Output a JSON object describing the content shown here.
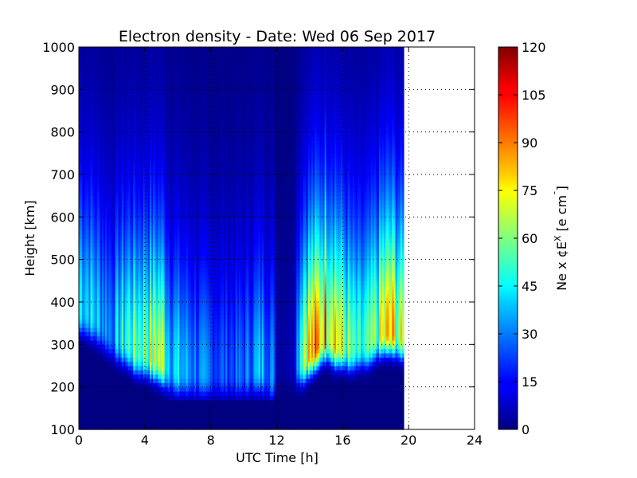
{
  "chart_data": {
    "type": "heatmap",
    "title": "Electron density - Date: Wed 06 Sep 2017",
    "xlabel": "UTC Time [h]",
    "ylabel": "Height [km]",
    "colorbar_label": "Ne x ¢E",
    "colorbar_label_sup": "X",
    "colorbar_label_unit": "  [e cm",
    "colorbar_label_unit_sup": "¯",
    "colorbar_label_close": "]",
    "xlim": [
      0,
      24
    ],
    "ylim": [
      100,
      1000
    ],
    "xticks": [
      0,
      4,
      8,
      12,
      16,
      20,
      24
    ],
    "yticks": [
      100,
      200,
      300,
      400,
      500,
      600,
      700,
      800,
      900,
      1000
    ],
    "colorbar_range": [
      0,
      120
    ],
    "colorbar_ticks": [
      0,
      15,
      30,
      45,
      60,
      75,
      90,
      105,
      120
    ],
    "colormap": "jet",
    "grid": "dotted",
    "data_end_hour": 19.7,
    "profiles": [
      {
        "t": 0.0,
        "hmax": 380,
        "peak": 55
      },
      {
        "t": 1.0,
        "hmax": 360,
        "peak": 45
      },
      {
        "t": 2.0,
        "hmax": 320,
        "peak": 35
      },
      {
        "t": 3.0,
        "hmax": 300,
        "peak": 60
      },
      {
        "t": 3.5,
        "hmax": 280,
        "peak": 65
      },
      {
        "t": 4.0,
        "hmax": 280,
        "peak": 70
      },
      {
        "t": 4.5,
        "hmax": 270,
        "peak": 75
      },
      {
        "t": 5.0,
        "hmax": 260,
        "peak": 80
      },
      {
        "t": 5.5,
        "hmax": 240,
        "peak": 50
      },
      {
        "t": 6.0,
        "hmax": 235,
        "peak": 45
      },
      {
        "t": 7.0,
        "hmax": 230,
        "peak": 35
      },
      {
        "t": 8.0,
        "hmax": 230,
        "peak": 30
      },
      {
        "t": 9.0,
        "hmax": 230,
        "peak": 28
      },
      {
        "t": 10.0,
        "hmax": 230,
        "peak": 30
      },
      {
        "t": 11.0,
        "hmax": 240,
        "peak": 42
      },
      {
        "t": 11.7,
        "hmax": 220,
        "peak": 38
      },
      {
        "t": 12.1,
        "hmax": 250,
        "peak": 5
      },
      {
        "t": 13.0,
        "hmax": 250,
        "peak": 8
      },
      {
        "t": 13.6,
        "hmax": 260,
        "peak": 85
      },
      {
        "t": 14.0,
        "hmax": 280,
        "peak": 90
      },
      {
        "t": 14.5,
        "hmax": 300,
        "peak": 95
      },
      {
        "t": 15.0,
        "hmax": 320,
        "peak": 105
      },
      {
        "t": 15.5,
        "hmax": 300,
        "peak": 100
      },
      {
        "t": 16.0,
        "hmax": 300,
        "peak": 75
      },
      {
        "t": 16.5,
        "hmax": 290,
        "peak": 60
      },
      {
        "t": 17.0,
        "hmax": 300,
        "peak": 50
      },
      {
        "t": 17.5,
        "hmax": 300,
        "peak": 55
      },
      {
        "t": 18.0,
        "hmax": 320,
        "peak": 65
      },
      {
        "t": 18.5,
        "hmax": 330,
        "peak": 85
      },
      {
        "t": 19.0,
        "hmax": 330,
        "peak": 90
      },
      {
        "t": 19.5,
        "hmax": 320,
        "peak": 75
      },
      {
        "t": 19.7,
        "hmax": 320,
        "peak": 70
      }
    ]
  }
}
